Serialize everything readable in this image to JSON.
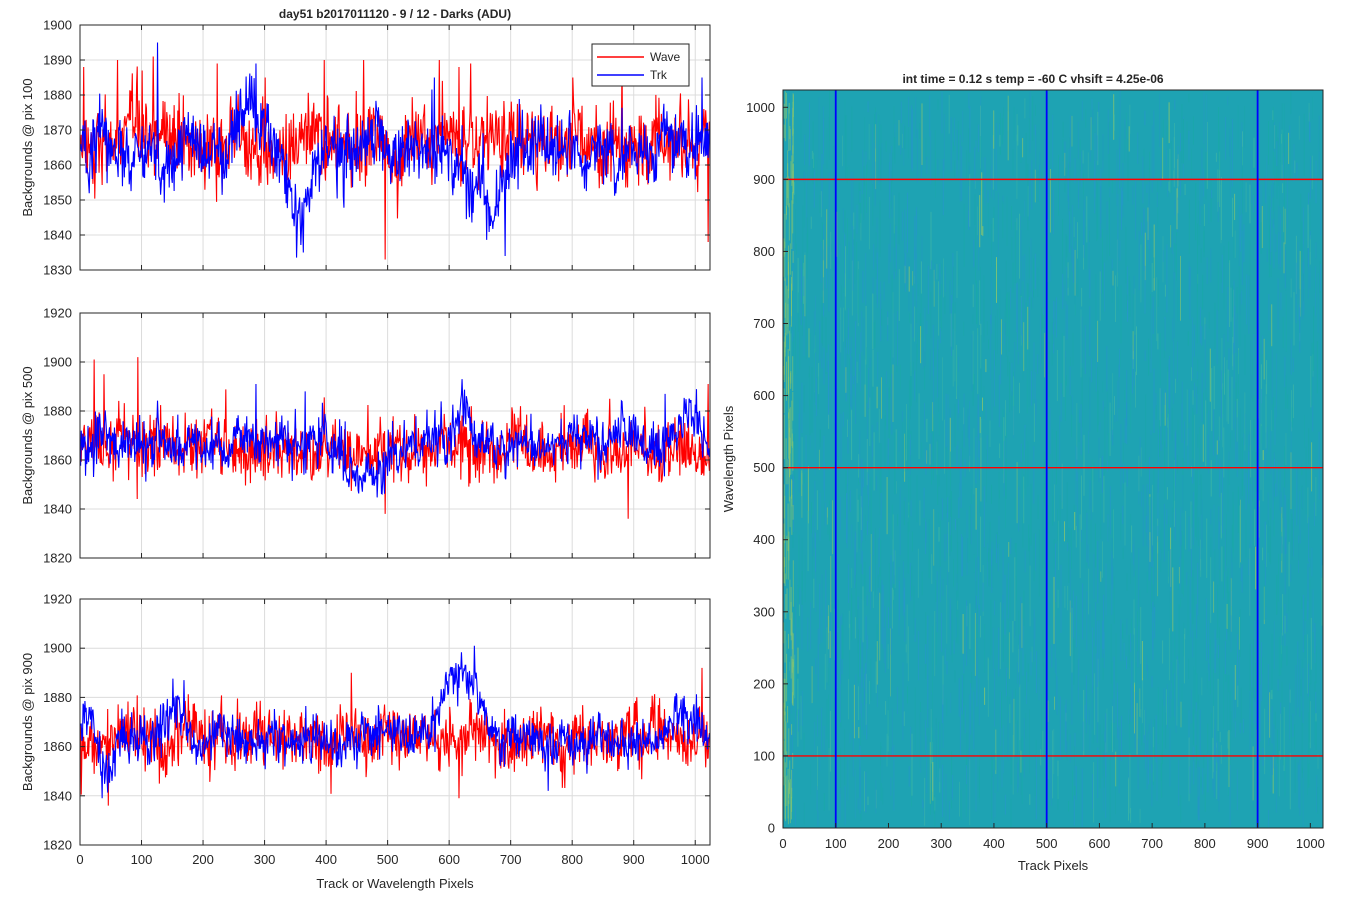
{
  "figure": {
    "left_title": "day51 b2017011120 - 9 / 12 - Darks (ADU)",
    "right_title": "int time = 0.12 s    temp = -60 C    vhsift = 4.25e-06"
  },
  "chart_data": [
    {
      "type": "line",
      "ylabel": "Backgrounds @ pix 100",
      "xlim": [
        0,
        1024
      ],
      "ylim": [
        1830,
        1900
      ],
      "xticks": [
        0,
        100,
        200,
        300,
        400,
        500,
        600,
        700,
        800,
        900,
        1000
      ],
      "yticks": [
        1830,
        1840,
        1850,
        1860,
        1870,
        1880,
        1890,
        1900
      ],
      "show_xtick_labels": false,
      "grid": true,
      "legend": {
        "location": "top-right",
        "entries": [
          "Wave",
          "Trk"
        ]
      },
      "series": [
        {
          "name": "Wave",
          "color": "#ff0000",
          "mean": 1866,
          "noise": 7,
          "spikes": [
            [
              5,
              1888
            ],
            [
              60,
              1890
            ],
            [
              100,
              1887
            ],
            [
              118,
              1891
            ],
            [
              222,
              1889
            ],
            [
              300,
              1885
            ],
            [
              396,
              1890
            ],
            [
              460,
              1890
            ],
            [
              495,
              1833
            ],
            [
              583,
              1890
            ],
            [
              615,
              1888
            ],
            [
              634,
              1889
            ],
            [
              800,
              1885
            ],
            [
              880,
              1889
            ],
            [
              1020,
              1838
            ]
          ],
          "segments": []
        },
        {
          "name": "Trk",
          "color": "#0000ff",
          "mean": 1864,
          "noise": 6,
          "spikes": [
            [
              125,
              1895
            ],
            [
              285,
              1889
            ],
            [
              362,
              1835
            ],
            [
              575,
              1885
            ],
            [
              690,
              1834
            ],
            [
              1010,
              1885
            ]
          ],
          "segments": [
            [
              250,
              320,
              1874
            ],
            [
              330,
              380,
              1850
            ],
            [
              600,
              710,
              1852
            ],
            [
              850,
              900,
              1861
            ]
          ]
        }
      ]
    },
    {
      "type": "line",
      "ylabel": "Backgrounds @ pix 500",
      "xlim": [
        0,
        1024
      ],
      "ylim": [
        1820,
        1920
      ],
      "xticks": [
        0,
        100,
        200,
        300,
        400,
        500,
        600,
        700,
        800,
        900,
        1000
      ],
      "yticks": [
        1820,
        1840,
        1860,
        1880,
        1900,
        1920
      ],
      "show_xtick_labels": false,
      "grid": true,
      "series": [
        {
          "name": "Wave",
          "color": "#ff0000",
          "mean": 1864,
          "noise": 8,
          "spikes": [
            [
              22,
              1901
            ],
            [
              38,
              1895
            ],
            [
              93,
              1902
            ],
            [
              495,
              1838
            ],
            [
              715,
              1882
            ],
            [
              860,
              1885
            ],
            [
              890,
              1836
            ],
            [
              1020,
              1891
            ]
          ],
          "segments": []
        },
        {
          "name": "Trk",
          "color": "#0000ff",
          "mean": 1866,
          "noise": 6,
          "spikes": [
            [
              285,
              1891
            ],
            [
              365,
              1888
            ],
            [
              620,
              1893
            ],
            [
              950,
              1887
            ]
          ],
          "segments": [
            [
              400,
              520,
              1857
            ],
            [
              600,
              640,
              1876
            ],
            [
              950,
              1020,
              1874
            ]
          ]
        }
      ]
    },
    {
      "type": "line",
      "ylabel": "Backgrounds @ pix 900",
      "xlim": [
        0,
        1024
      ],
      "ylim": [
        1820,
        1920
      ],
      "xticks": [
        0,
        100,
        200,
        300,
        400,
        500,
        600,
        700,
        800,
        900,
        1000
      ],
      "yticks": [
        1820,
        1840,
        1860,
        1880,
        1900,
        1920
      ],
      "show_xtick_labels": true,
      "xlabel": "Track or Wavelength Pixels",
      "grid": true,
      "series": [
        {
          "name": "Wave",
          "color": "#ff0000",
          "mean": 1864,
          "noise": 8,
          "spikes": [
            [
              45,
              1836
            ],
            [
              440,
              1890
            ],
            [
              615,
              1839
            ],
            [
              1010,
              1892
            ]
          ],
          "segments": []
        },
        {
          "name": "Trk",
          "color": "#0000ff",
          "mean": 1864,
          "noise": 6,
          "spikes": [
            [
              35,
              1839
            ],
            [
              168,
              1887
            ],
            [
              640,
              1901
            ],
            [
              760,
              1842
            ]
          ],
          "segments": [
            [
              0,
              50,
              1870
            ],
            [
              20,
              60,
              1850
            ],
            [
              120,
              180,
              1872
            ],
            [
              570,
              660,
              1886
            ],
            [
              930,
              1024,
              1868
            ]
          ]
        }
      ]
    },
    {
      "type": "heatmap",
      "title": "int time = 0.12 s    temp = -60 C    vhsift = 4.25e-06",
      "xlabel": "Track Pixels",
      "ylabel": "Wavelength Pixels",
      "xlim": [
        0,
        1024
      ],
      "ylim": [
        0,
        1024
      ],
      "xticks": [
        0,
        100,
        200,
        300,
        400,
        500,
        600,
        700,
        800,
        900,
        1000
      ],
      "yticks": [
        0,
        100,
        200,
        300,
        400,
        500,
        600,
        700,
        800,
        900,
        1000
      ],
      "colormap": [
        "#1aa8a8",
        "#2597c9",
        "#3fb6a4",
        "#8fc86a"
      ],
      "vertical_markers": {
        "x": [
          100,
          500,
          900
        ],
        "color": "#0000ff"
      },
      "horizontal_markers": {
        "y": [
          100,
          500,
          900
        ],
        "color": "#ff0000"
      }
    }
  ]
}
